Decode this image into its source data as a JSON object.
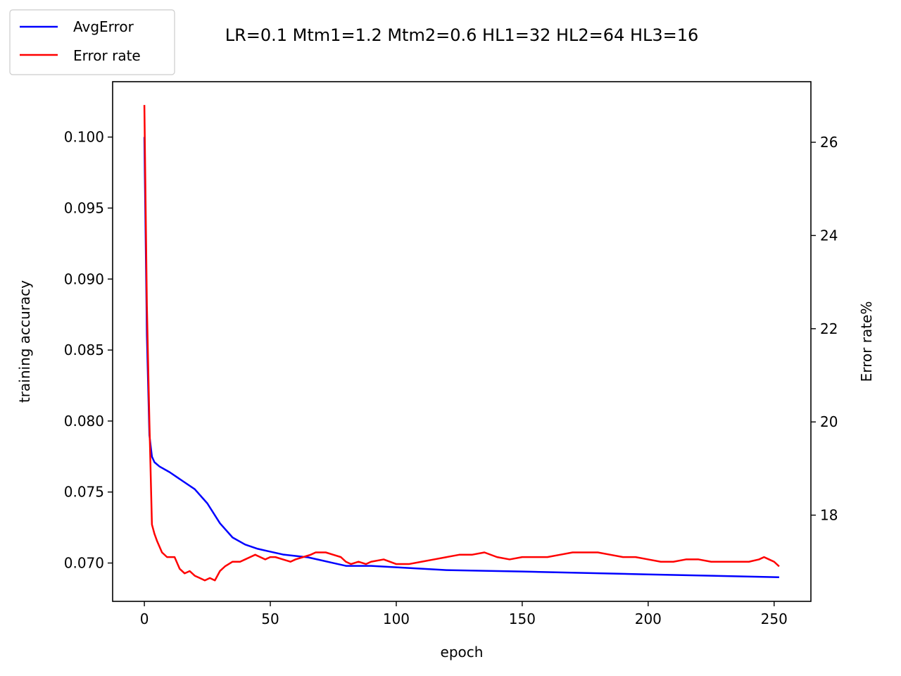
{
  "chart_data": {
    "type": "line",
    "title": "LR=0.1 Mtm1=1.2 Mtm2=0.6 HL1=32 HL2=64 HL3=16",
    "xlabel": "epoch",
    "ylabel": "training accuracy",
    "y2label": "Error rate%",
    "xlim": [
      -12.6,
      264.6
    ],
    "ylim": [
      0.0673,
      0.1039
    ],
    "y2lim": [
      16.15,
      27.3
    ],
    "x_ticks": [
      0,
      50,
      100,
      150,
      200,
      250
    ],
    "y_ticks": [
      0.07,
      0.075,
      0.08,
      0.085,
      0.09,
      0.095,
      0.1
    ],
    "y2_ticks": [
      18,
      20,
      22,
      24,
      26
    ],
    "grid": false,
    "legend_position": "top-left",
    "series": [
      {
        "name": "AvgError",
        "axis": "left",
        "color": "#0000ff",
        "x": [
          0,
          1,
          2,
          3,
          4,
          6,
          10,
          15,
          20,
          25,
          30,
          35,
          40,
          45,
          50,
          55,
          60,
          65,
          70,
          75,
          80,
          90,
          100,
          110,
          120,
          150,
          200,
          252
        ],
        "y": [
          0.1,
          0.086,
          0.079,
          0.0775,
          0.0771,
          0.0768,
          0.0764,
          0.0758,
          0.0752,
          0.0742,
          0.0728,
          0.0718,
          0.0713,
          0.071,
          0.0708,
          0.0706,
          0.0705,
          0.0704,
          0.0702,
          0.07,
          0.0698,
          0.0698,
          0.0697,
          0.0696,
          0.0695,
          0.0694,
          0.0692,
          0.069
        ]
      },
      {
        "name": "Error rate",
        "axis": "right",
        "color": "#ff0000",
        "x": [
          0,
          1,
          2,
          3,
          4,
          5,
          7,
          9,
          10,
          12,
          14,
          16,
          18,
          20,
          22,
          24,
          26,
          28,
          30,
          32,
          35,
          38,
          40,
          42,
          44,
          46,
          48,
          50,
          52,
          55,
          58,
          60,
          63,
          66,
          68,
          70,
          72,
          75,
          78,
          80,
          82,
          85,
          88,
          90,
          95,
          100,
          105,
          110,
          115,
          120,
          125,
          130,
          135,
          140,
          145,
          150,
          155,
          160,
          165,
          170,
          175,
          180,
          185,
          190,
          195,
          200,
          205,
          210,
          215,
          220,
          225,
          230,
          235,
          240,
          244,
          246,
          248,
          250,
          252
        ],
        "y": [
          26.8,
          22.5,
          20.0,
          17.8,
          17.6,
          17.45,
          17.2,
          17.1,
          17.1,
          17.1,
          16.85,
          16.75,
          16.8,
          16.7,
          16.65,
          16.6,
          16.65,
          16.6,
          16.8,
          16.9,
          17.0,
          17.0,
          17.05,
          17.1,
          17.15,
          17.1,
          17.05,
          17.1,
          17.1,
          17.05,
          17.0,
          17.05,
          17.1,
          17.15,
          17.2,
          17.2,
          17.2,
          17.15,
          17.1,
          17.0,
          16.95,
          17.0,
          16.95,
          17.0,
          17.05,
          16.95,
          16.95,
          17.0,
          17.05,
          17.1,
          17.15,
          17.15,
          17.2,
          17.1,
          17.05,
          17.1,
          17.1,
          17.1,
          17.15,
          17.2,
          17.2,
          17.2,
          17.15,
          17.1,
          17.1,
          17.05,
          17.0,
          17.0,
          17.05,
          17.05,
          17.0,
          17.0,
          17.0,
          17.0,
          17.05,
          17.1,
          17.05,
          17.0,
          16.9
        ]
      }
    ]
  }
}
